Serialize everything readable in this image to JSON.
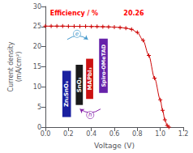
{
  "chart_data": {
    "type": "line",
    "xlabel": "Voltage (V)",
    "ylabel": "Current density\n(mA/cm²)",
    "x": [
      0.0,
      0.05,
      0.1,
      0.15,
      0.2,
      0.25,
      0.3,
      0.35,
      0.4,
      0.45,
      0.5,
      0.55,
      0.6,
      0.65,
      0.7,
      0.75,
      0.8,
      0.85,
      0.9,
      0.95,
      1.0,
      1.02,
      1.04,
      1.06,
      1.075
    ],
    "values": [
      25.1,
      25.1,
      25.1,
      25.1,
      25.08,
      25.07,
      25.06,
      25.05,
      25.03,
      25.0,
      24.97,
      24.93,
      24.87,
      24.78,
      24.62,
      24.32,
      23.55,
      21.6,
      17.8,
      12.2,
      6.8,
      4.2,
      1.8,
      0.4,
      0.0
    ],
    "color": "#cc0000",
    "marker": "plus",
    "xlim": [
      0,
      1.2
    ],
    "xticks": [
      {
        "value": 0,
        "label": "0.0"
      },
      0.2,
      0.4,
      0.6,
      0.8,
      {
        "value": 1,
        "label": "1.0"
      },
      1.2
    ],
    "ylim": [
      0,
      30
    ],
    "yticks": [
      0,
      5,
      10,
      15,
      20,
      25,
      30
    ],
    "grid": false,
    "annotations": [
      {
        "text": "Zn₂SnO₄",
        "color": "#1a20a0"
      },
      {
        "text": "SnO₂",
        "color": "#1a1a1a"
      },
      {
        "text": "MAPbI₃",
        "color": "#cc1111"
      },
      {
        "text": "Spiro-OMeTAD",
        "color": "#6622aa"
      },
      {
        "text": "e",
        "color": "#4499cc"
      },
      {
        "text": "h",
        "color": "#8822aa"
      },
      {
        "text": "Efficiency / %",
        "color": "red"
      },
      {
        "text": "20.26",
        "color": "red"
      }
    ]
  }
}
